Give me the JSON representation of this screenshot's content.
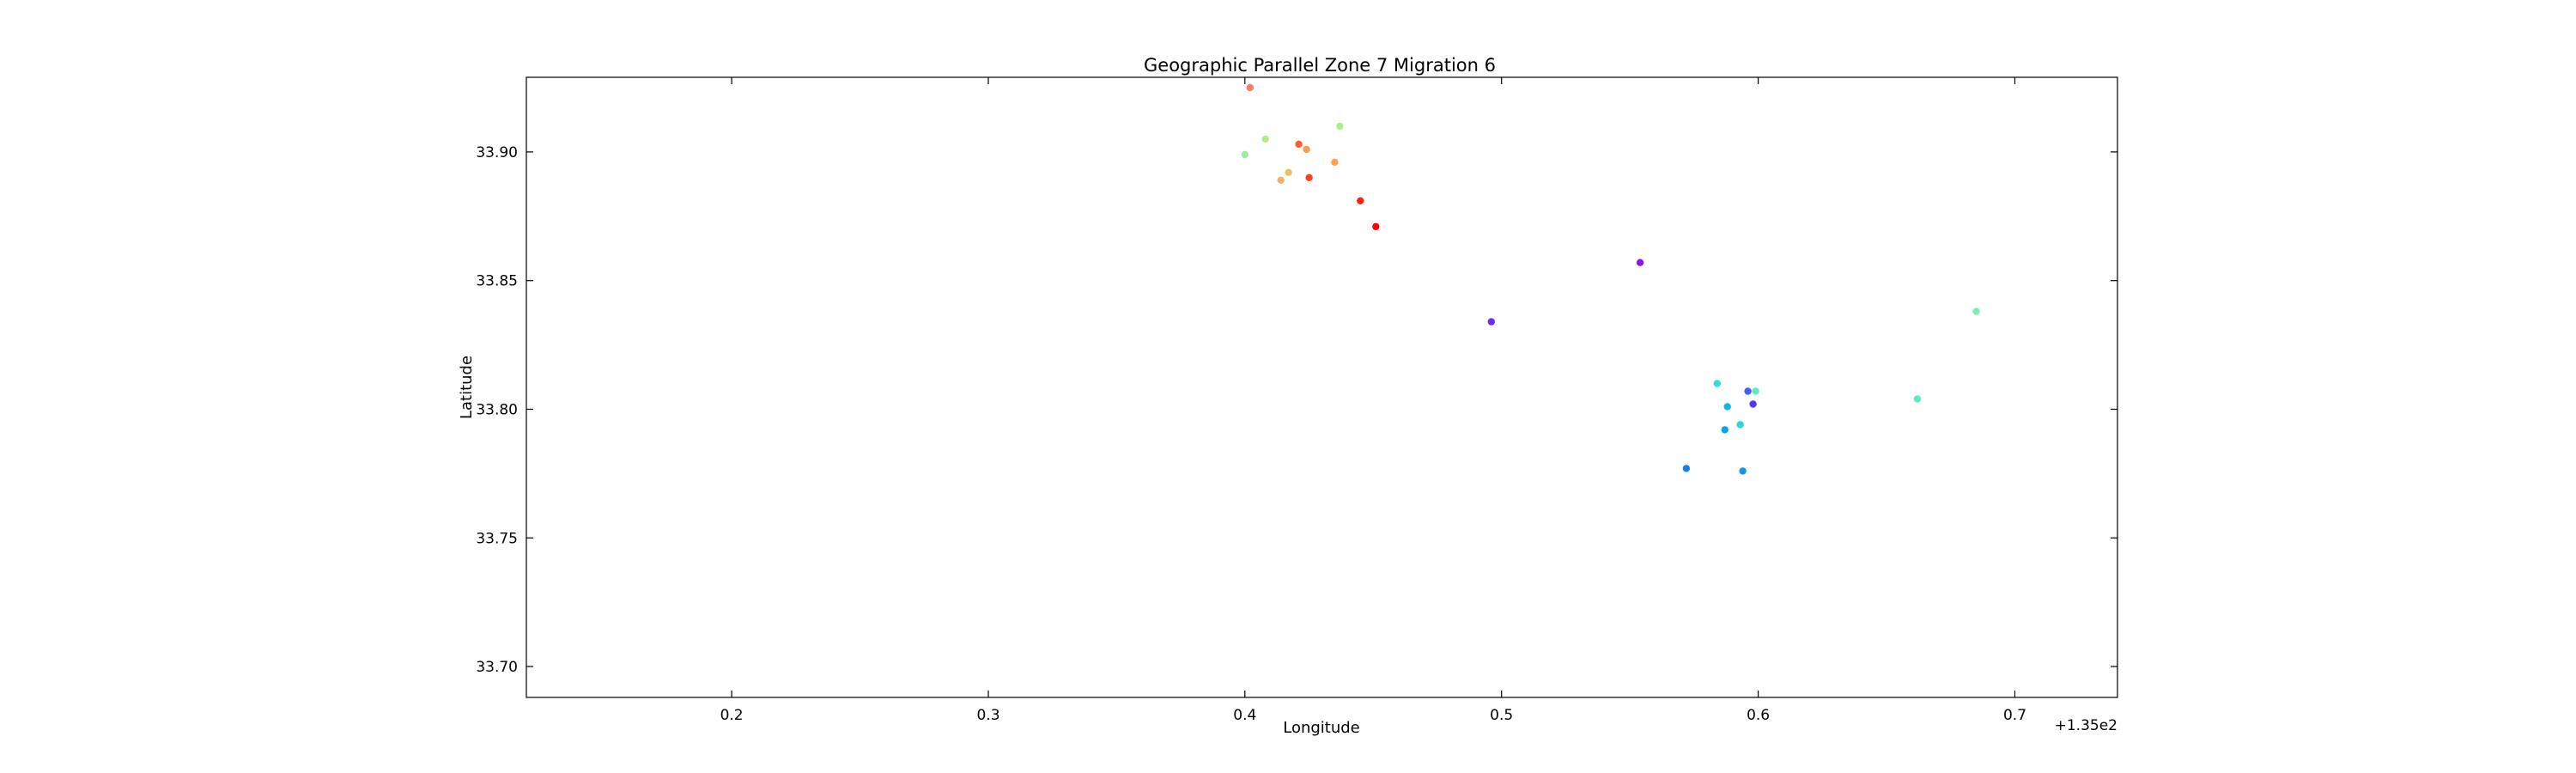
{
  "chart_data": {
    "type": "scatter",
    "title": "Geographic Parallel Zone 7 Migration 6",
    "xlabel": "Longitude",
    "ylabel": "Latitude",
    "x_offset_label": "+1.35e2",
    "xlim": [
      135.12,
      135.74
    ],
    "ylim": [
      33.688,
      33.929
    ],
    "x_ticks": [
      135.2,
      135.3,
      135.4,
      135.5,
      135.6,
      135.7
    ],
    "x_tick_labels": [
      "0.2",
      "0.3",
      "0.4",
      "0.5",
      "0.6",
      "0.7"
    ],
    "y_ticks": [
      33.7,
      33.75,
      33.8,
      33.85,
      33.9
    ],
    "y_tick_labels": [
      "33.70",
      "33.75",
      "33.80",
      "33.85",
      "33.90"
    ],
    "grid": false,
    "points": [
      {
        "x": 135.402,
        "y": 33.925,
        "color": "#ff7a6a"
      },
      {
        "x": 135.437,
        "y": 33.91,
        "color": "#a8f08c"
      },
      {
        "x": 135.408,
        "y": 33.905,
        "color": "#b4eb86"
      },
      {
        "x": 135.421,
        "y": 33.903,
        "color": "#ff5a2e"
      },
      {
        "x": 135.424,
        "y": 33.901,
        "color": "#ff9a4a"
      },
      {
        "x": 135.4,
        "y": 33.899,
        "color": "#98f098"
      },
      {
        "x": 135.435,
        "y": 33.896,
        "color": "#ffa050"
      },
      {
        "x": 135.417,
        "y": 33.892,
        "color": "#e8c06a"
      },
      {
        "x": 135.425,
        "y": 33.89,
        "color": "#ff4020"
      },
      {
        "x": 135.414,
        "y": 33.889,
        "color": "#f0b070"
      },
      {
        "x": 135.445,
        "y": 33.881,
        "color": "#ff1e10"
      },
      {
        "x": 135.451,
        "y": 33.871,
        "color": "#ff0000"
      },
      {
        "x": 135.554,
        "y": 33.857,
        "color": "#8a14f0"
      },
      {
        "x": 135.685,
        "y": 33.838,
        "color": "#7cf0b4"
      },
      {
        "x": 135.496,
        "y": 33.834,
        "color": "#6a2cf8"
      },
      {
        "x": 135.584,
        "y": 33.81,
        "color": "#30e0dc"
      },
      {
        "x": 135.596,
        "y": 33.807,
        "color": "#4060f4"
      },
      {
        "x": 135.599,
        "y": 33.807,
        "color": "#60e8c8"
      },
      {
        "x": 135.662,
        "y": 33.804,
        "color": "#5cecc4"
      },
      {
        "x": 135.598,
        "y": 33.802,
        "color": "#5038f4"
      },
      {
        "x": 135.588,
        "y": 33.801,
        "color": "#10b8e0"
      },
      {
        "x": 135.593,
        "y": 33.794,
        "color": "#2ed4d8"
      },
      {
        "x": 135.587,
        "y": 33.792,
        "color": "#08a4e4"
      },
      {
        "x": 135.572,
        "y": 33.777,
        "color": "#1a7ee8"
      },
      {
        "x": 135.594,
        "y": 33.776,
        "color": "#1494ea"
      }
    ]
  }
}
